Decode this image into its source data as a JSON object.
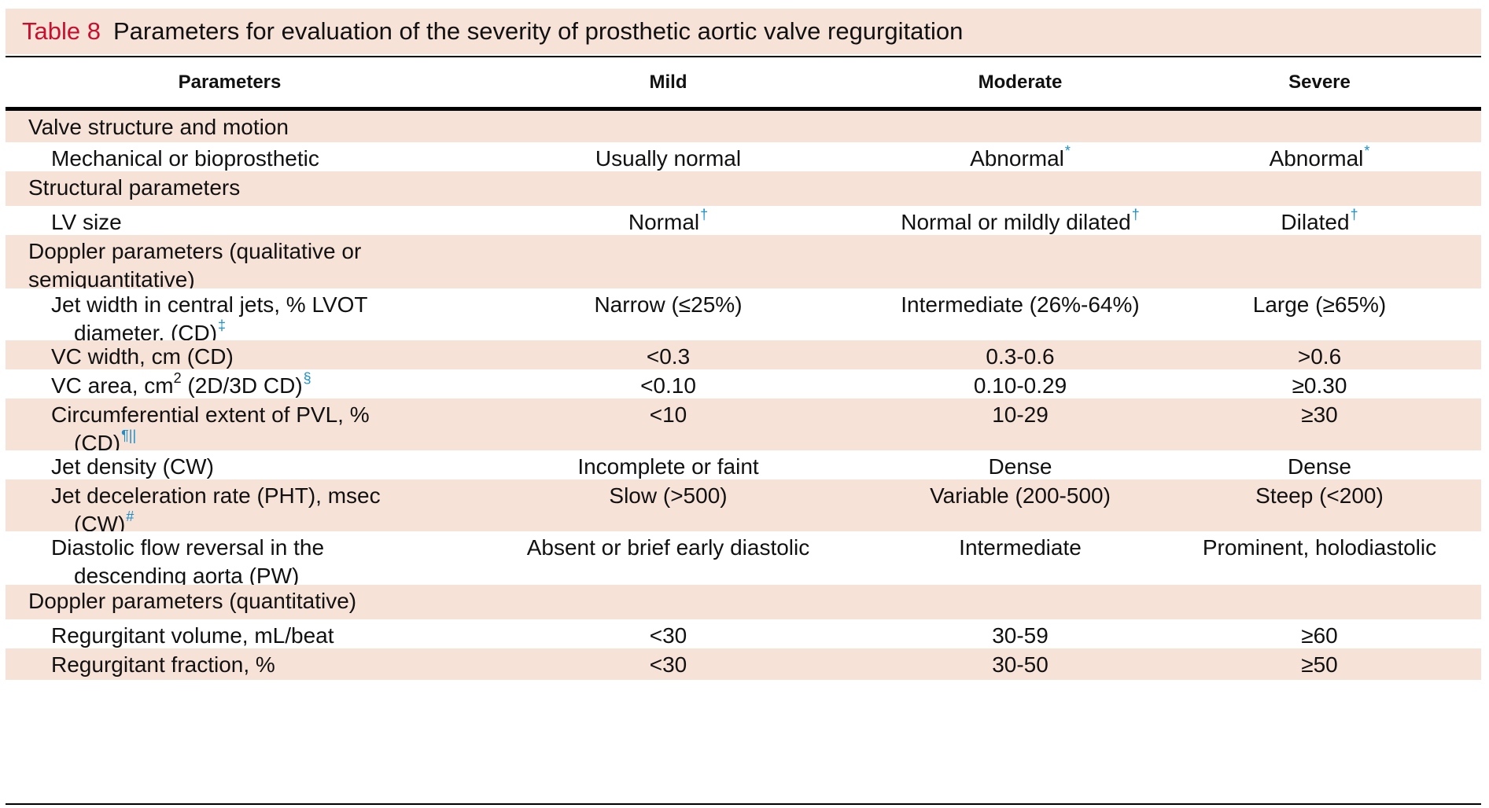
{
  "table": {
    "label": "Table 8",
    "title": "Parameters for evaluation of the severity of prosthetic aortic valve regurgitation",
    "headers": {
      "parameters": "Parameters",
      "mild": "Mild",
      "moderate": "Moderate",
      "severe": "Severe"
    },
    "rows": [
      {
        "type": "section",
        "param": "Valve structure and motion"
      },
      {
        "type": "item",
        "param": "Mechanical or bioprosthetic",
        "mild": "Usually normal",
        "moderate": "Abnormal",
        "moderate_fn": "*",
        "severe": "Abnormal",
        "severe_fn": "*"
      },
      {
        "type": "section",
        "param": "Structural parameters"
      },
      {
        "type": "item",
        "param": "LV size",
        "mild": "Normal",
        "mild_fn": "†",
        "moderate": "Normal or mildly dilated",
        "moderate_fn": "†",
        "severe": "Dilated",
        "severe_fn": "†"
      },
      {
        "type": "section",
        "param": "Doppler parameters (qualitative or semiquantitative)"
      },
      {
        "type": "item",
        "param_line1": "Jet width in central jets, % LVOT",
        "param_line2": "diameter, (CD)",
        "param_fn": "‡",
        "mild": "Narrow (≤25%)",
        "moderate": "Intermediate (26%-64%)",
        "severe": "Large (≥65%)"
      },
      {
        "type": "item",
        "param": "VC width, cm (CD)",
        "mild": "<0.3",
        "moderate": "0.3-0.6",
        "severe": ">0.6"
      },
      {
        "type": "item",
        "param_pre": "VC area, cm",
        "param_pow": "2",
        "param_post": " (2D/3D CD)",
        "param_fn": "§",
        "mild": "<0.10",
        "moderate": "0.10-0.29",
        "severe": "≥0.30"
      },
      {
        "type": "item",
        "param_line1": "Circumferential extent of PVL, %",
        "param_line2": "(CD)",
        "param_fn": "¶||",
        "mild": "<10",
        "moderate": "10-29",
        "severe": "≥30"
      },
      {
        "type": "item",
        "param": "Jet density (CW)",
        "mild": "Incomplete or faint",
        "moderate": "Dense",
        "severe": "Dense"
      },
      {
        "type": "item",
        "param_line1": "Jet deceleration rate (PHT), msec",
        "param_line2": "(CW)",
        "param_fn": "#",
        "mild": "Slow (>500)",
        "moderate": "Variable (200-500)",
        "severe": "Steep (<200)"
      },
      {
        "type": "item",
        "param_line1": "Diastolic flow reversal in the",
        "param_line2": "descending aorta (PW)",
        "mild": "Absent or brief early diastolic",
        "moderate": "Intermediate",
        "severe": "Prominent, holodiastolic"
      },
      {
        "type": "section",
        "param": "Doppler parameters (quantitative)"
      },
      {
        "type": "item",
        "param": "Regurgitant volume, mL/beat",
        "mild": "<30",
        "moderate": "30-59",
        "severe": "≥60"
      },
      {
        "type": "item",
        "param": "Regurgitant fraction, %",
        "mild": "<30",
        "moderate": "30-50",
        "severe": "≥50"
      }
    ]
  },
  "colors": {
    "shade": "#f7e2d8",
    "label_red": "#c8102e",
    "footnote_blue": "#1a8fc9"
  }
}
